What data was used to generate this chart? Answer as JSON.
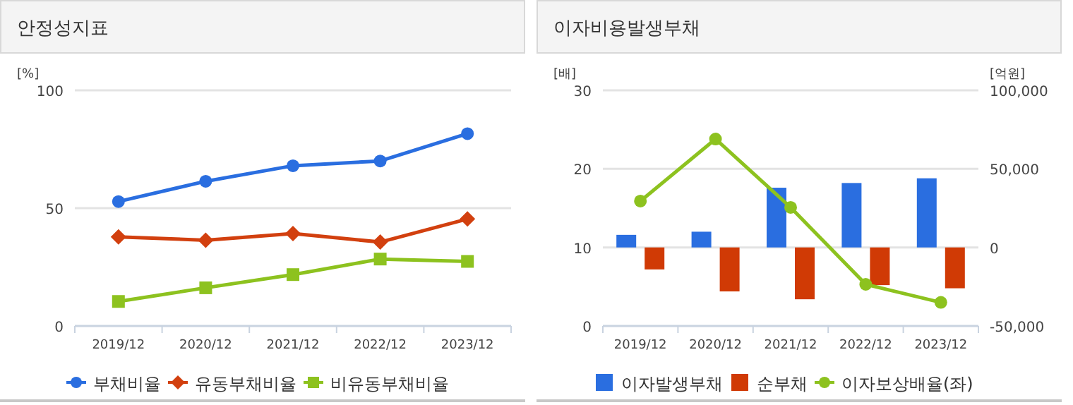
{
  "chart_data": [
    {
      "type": "line",
      "title": "안정성지표",
      "ylabel": "[%]",
      "categories": [
        "2019/12",
        "2020/12",
        "2021/12",
        "2022/12",
        "2023/12"
      ],
      "ylim": [
        0,
        100
      ],
      "yticks": [
        0,
        50,
        100
      ],
      "grid": "y",
      "legend": "bottom",
      "series": [
        {
          "name": "부채비율",
          "color": "#2a6ee0",
          "marker": "circle",
          "values": [
            52.8,
            61.4,
            68,
            70,
            81.6
          ]
        },
        {
          "name": "유동부채비율",
          "color": "#d2400f",
          "marker": "diamond",
          "values": [
            37.8,
            36.4,
            39.2,
            35.6,
            45.4
          ]
        },
        {
          "name": "비유동부채비율",
          "color": "#8dc21f",
          "marker": "square",
          "values": [
            10.4,
            16.2,
            21.8,
            28.4,
            27.4
          ]
        }
      ]
    },
    {
      "type": "bar",
      "title": "이자비용발생부채",
      "ylabel": "[배]",
      "y2label": "[억원]",
      "categories": [
        "2019/12",
        "2020/12",
        "2021/12",
        "2022/12",
        "2023/12"
      ],
      "ylim": [
        0,
        30
      ],
      "yticks": [
        0,
        10,
        20,
        30
      ],
      "y2lim": [
        -50000,
        100000
      ],
      "y2ticks": [
        {
          "value": -50000,
          "label": "-50,000"
        },
        {
          "value": 0,
          "label": "0"
        },
        {
          "value": 50000,
          "label": "50,000"
        },
        {
          "value": 100000,
          "label": "100,000"
        }
      ],
      "grid": "y",
      "legend": "bottom",
      "series": [
        {
          "name": "이자발생부채",
          "color": "#2a6ee0",
          "axis": "y2",
          "values": [
            8000,
            10000,
            38000,
            41000,
            44000
          ]
        },
        {
          "name": "순부채",
          "color": "#d03a05",
          "axis": "y2",
          "values": [
            -14000,
            -28000,
            -33000,
            -24000,
            -26000
          ]
        },
        {
          "name": "이자보상배율(좌)",
          "type": "line",
          "color": "#8dc21f",
          "marker": "circle",
          "axis": "y",
          "values": [
            15.9,
            23.8,
            15.1,
            5.3,
            3.0
          ]
        }
      ]
    }
  ]
}
